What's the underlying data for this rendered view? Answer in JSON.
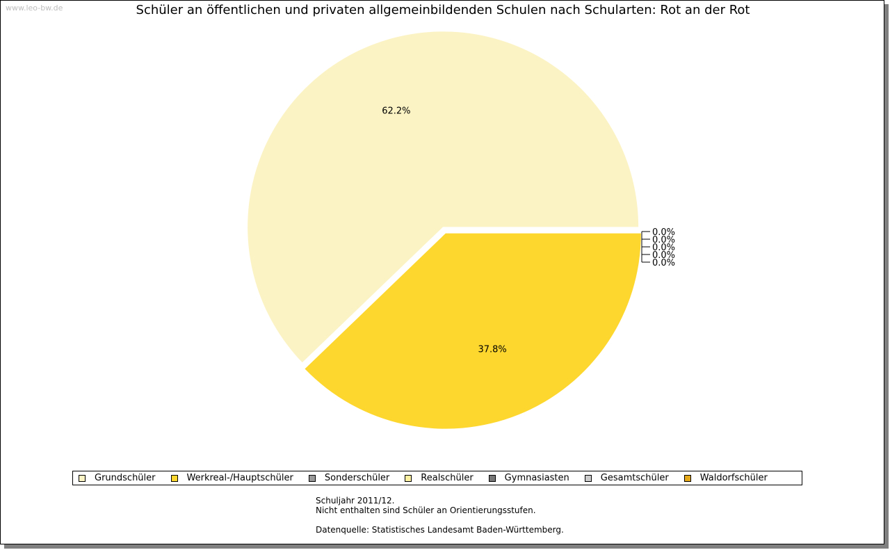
{
  "watermark": "www.leo-bw.de",
  "chart_data": {
    "type": "pie",
    "title": "Schüler an öffentlichen und privaten allgemeinbildenden Schulen nach Schularten: Rot an der Rot",
    "categories": [
      "Grundschüler",
      "Werkreal-/Hauptschüler",
      "Sonderschüler",
      "Realschüler",
      "Gymnasiasten",
      "Gesamtschüler",
      "Waldorfschüler"
    ],
    "values": [
      62.2,
      37.8,
      0.0,
      0.0,
      0.0,
      0.0,
      0.0
    ],
    "labels": [
      "62.2%",
      "37.8%",
      "0.0%",
      "0.0%",
      "0.0%",
      "0.0%",
      "0.0%"
    ],
    "colors": [
      "#fcf3c5",
      "#fdd72e",
      "#999999",
      "#fdf0a0",
      "#777777",
      "#cccccc",
      "#e6a919"
    ],
    "legend_position": "bottom"
  },
  "notes": {
    "line1": "Schuljahr 2011/12.",
    "line2": "Nicht enthalten sind Schüler an Orientierungsstufen.",
    "line3": "Datenquelle: Statistisches Landesamt Baden-Württemberg."
  }
}
